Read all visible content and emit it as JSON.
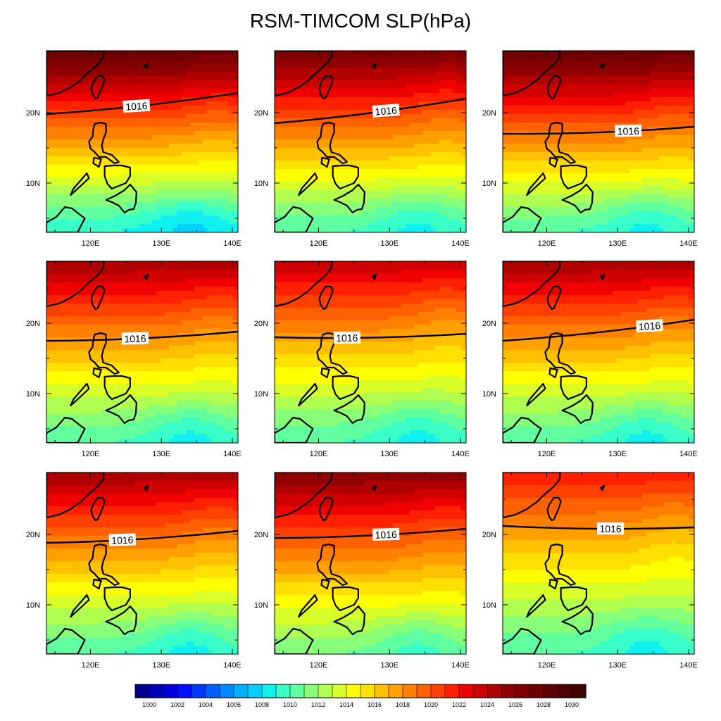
{
  "figure": {
    "title": "RSM-TIMCOM SLP(hPa)"
  },
  "chart_data": {
    "type": "heatmap",
    "title": "RSM-TIMCOM SLP(hPa)",
    "variable": "SLP (hPa)",
    "panel_grid": [
      3,
      3
    ],
    "lon_range": [
      113.8,
      140.8
    ],
    "lat_range": [
      3,
      28.8
    ],
    "x_ticks": [
      120,
      130,
      140
    ],
    "x_tick_labels": [
      "120E",
      "130E",
      "140E"
    ],
    "y_ticks": [
      10,
      20
    ],
    "y_tick_labels": [
      "10N",
      "20N"
    ],
    "contour_level": 1016,
    "contour_label": "1016",
    "colorbar": {
      "levels": [
        1000,
        1001,
        1002,
        1003,
        1004,
        1005,
        1006,
        1007,
        1008,
        1009,
        1010,
        1011,
        1012,
        1013,
        1014,
        1015,
        1016,
        1017,
        1018,
        1019,
        1020,
        1021,
        1022,
        1023,
        1024,
        1025,
        1026,
        1027,
        1028,
        1029,
        1030
      ],
      "labels": [
        "1000",
        "1002",
        "1004",
        "1006",
        "1008",
        "1010",
        "1012",
        "1014",
        "1016",
        "1018",
        "1020",
        "1022",
        "1024",
        "1026",
        "1028",
        "1030"
      ],
      "colors": [
        "#00008f",
        "#0000b8",
        "#0000e0",
        "#0010ff",
        "#0038ff",
        "#0060ff",
        "#0088ff",
        "#00b0ff",
        "#00d0ff",
        "#10f0f0",
        "#38ffc8",
        "#60ffa0",
        "#88ff78",
        "#b0ff50",
        "#d8ff28",
        "#ffff00",
        "#ffe000",
        "#ffc000",
        "#ffa000",
        "#ff8000",
        "#ff6000",
        "#ff4000",
        "#ff2000",
        "#f00000",
        "#d00000",
        "#b00000",
        "#900000",
        "#800000",
        "#700000",
        "#600000",
        "#500000",
        "#400000"
      ],
      "palette": "rainbow (blue to red)"
    },
    "panels": [
      {
        "north_max": 1028,
        "south_min": 1009,
        "contour_1016_lat_west": 19.8,
        "contour_1016_lat_east": 22.8,
        "label_lon": 126.5
      },
      {
        "north_max": 1027,
        "south_min": 1010,
        "contour_1016_lat_west": 18.5,
        "contour_1016_lat_east": 22.0,
        "label_lon": 129.5
      },
      {
        "north_max": 1028,
        "south_min": 1010,
        "contour_1016_lat_west": 17.0,
        "contour_1016_lat_east": 18.0,
        "label_lon": 131.5
      },
      {
        "north_max": 1025,
        "south_min": 1010,
        "contour_1016_lat_west": 17.5,
        "contour_1016_lat_east": 18.8,
        "label_lon": 126.3
      },
      {
        "north_max": 1024,
        "south_min": 1010,
        "contour_1016_lat_west": 18.0,
        "contour_1016_lat_east": 18.5,
        "label_lon": 124.0
      },
      {
        "north_max": 1025,
        "south_min": 1010,
        "contour_1016_lat_west": 17.5,
        "contour_1016_lat_east": 20.5,
        "label_lon": 134.5
      },
      {
        "north_max": 1025,
        "south_min": 1010,
        "contour_1016_lat_west": 18.8,
        "contour_1016_lat_east": 20.5,
        "label_lon": 124.5
      },
      {
        "north_max": 1026,
        "south_min": 1011,
        "contour_1016_lat_west": 19.5,
        "contour_1016_lat_east": 20.8,
        "label_lon": 129.5
      },
      {
        "north_max": 1022,
        "south_min": 1010,
        "contour_1016_lat_west": 21.2,
        "contour_1016_lat_east": 21.0,
        "label_lon": 129.0
      }
    ]
  }
}
